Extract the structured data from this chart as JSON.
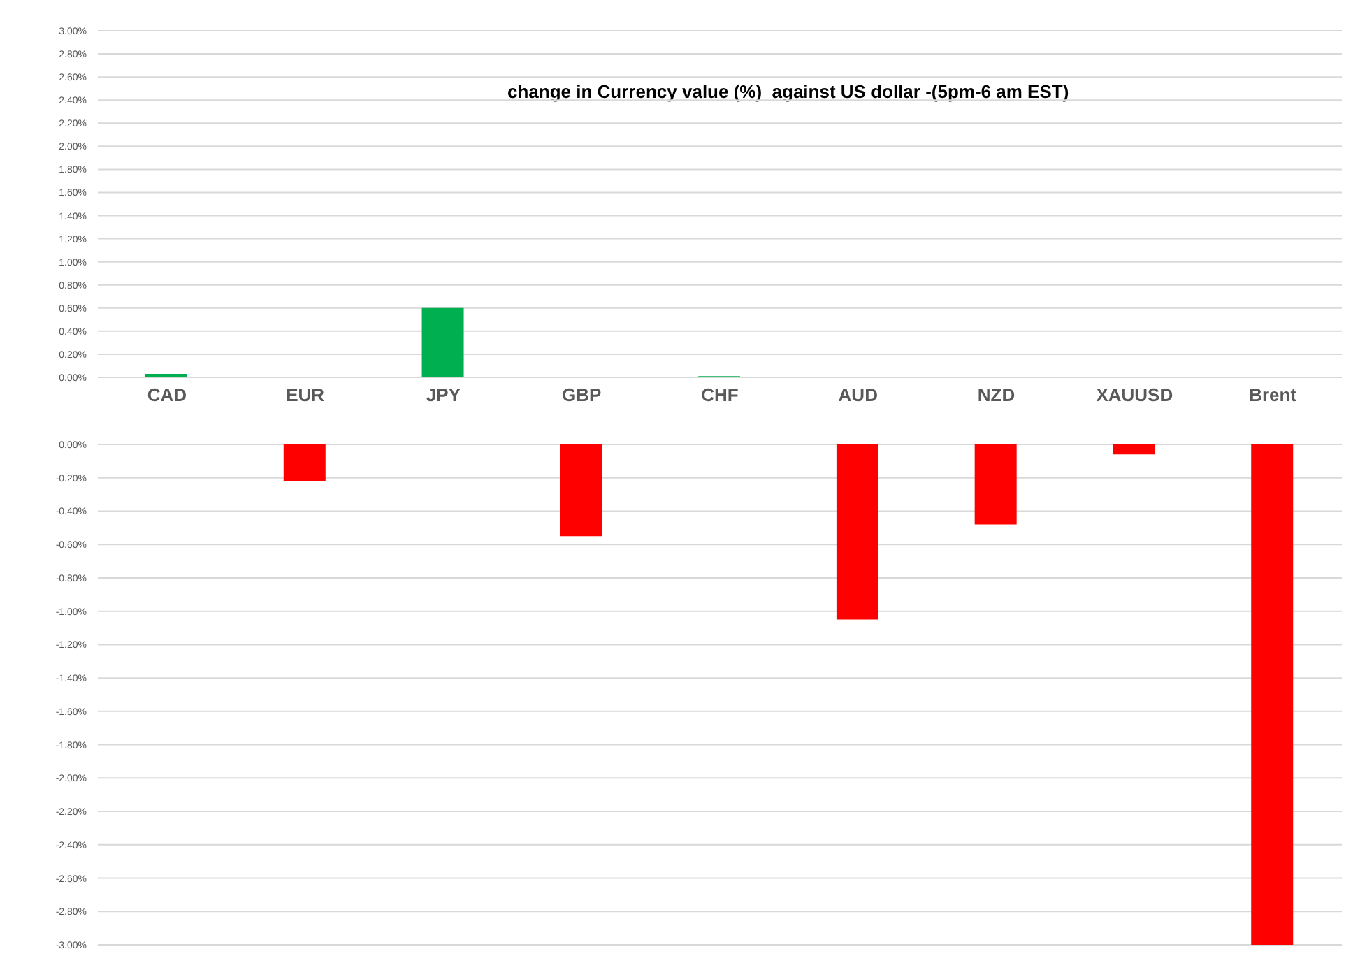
{
  "chart_data": [
    {
      "type": "bar",
      "title": "change in Currency value (%)  against US dollar -(5pm-6 am EST)",
      "categories": [
        "CAD",
        "EUR",
        "JPY",
        "GBP",
        "CHF",
        "AUD",
        "NZD",
        "XAUUSD",
        "Brent"
      ],
      "values": [
        0.03,
        null,
        0.6,
        null,
        0.01,
        null,
        null,
        null,
        null
      ],
      "color": "#00b050",
      "ylim": [
        0,
        3
      ],
      "yticks": [
        {
          "value": 0,
          "label": "0.00%"
        },
        {
          "value": 0.2,
          "label": "0.20%"
        },
        {
          "value": 0.4,
          "label": "0.40%"
        },
        {
          "value": 0.6,
          "label": "0.60%"
        },
        {
          "value": 0.8,
          "label": "0.80%"
        },
        {
          "value": 1,
          "label": "1.00%"
        },
        {
          "value": 1.2,
          "label": "1.20%"
        },
        {
          "value": 1.4,
          "label": "1.40%"
        },
        {
          "value": 1.6,
          "label": "1.60%"
        },
        {
          "value": 1.8,
          "label": "1.80%"
        },
        {
          "value": 2,
          "label": "2.00%"
        },
        {
          "value": 2.2,
          "label": "2.20%"
        },
        {
          "value": 2.4,
          "label": "2.40%"
        },
        {
          "value": 2.6,
          "label": "2.60%"
        },
        {
          "value": 2.8,
          "label": "2.80%"
        },
        {
          "value": 3,
          "label": "3.00%"
        }
      ],
      "grid": "y"
    },
    {
      "type": "bar",
      "categories": [
        null,
        null,
        null,
        null,
        null,
        null,
        null,
        null,
        null
      ],
      "values": [
        null,
        -0.22,
        null,
        -0.55,
        null,
        -1.05,
        -0.48,
        -0.06,
        -3.0
      ],
      "color": "#ff0000",
      "ylim": [
        -3,
        0
      ],
      "yticks": [
        {
          "value": 0,
          "label": "0.00%"
        },
        {
          "value": -0.2,
          "label": "-0.20%"
        },
        {
          "value": -0.4,
          "label": "-0.40%"
        },
        {
          "value": -0.6,
          "label": "-0.60%"
        },
        {
          "value": -0.8,
          "label": "-0.80%"
        },
        {
          "value": -1,
          "label": "-1.00%"
        },
        {
          "value": -1.2,
          "label": "-1.20%"
        },
        {
          "value": -1.4,
          "label": "-1.40%"
        },
        {
          "value": -1.6,
          "label": "-1.60%"
        },
        {
          "value": -1.8,
          "label": "-1.80%"
        },
        {
          "value": -2,
          "label": "-2.00%"
        },
        {
          "value": -2.2,
          "label": "-2.20%"
        },
        {
          "value": -2.4,
          "label": "-2.40%"
        },
        {
          "value": -2.6,
          "label": "-2.60%"
        },
        {
          "value": -2.8,
          "label": "-2.80%"
        },
        {
          "value": -3,
          "label": "-3.00%"
        }
      ],
      "grid": "y",
      "tick_labels": "y"
    }
  ]
}
